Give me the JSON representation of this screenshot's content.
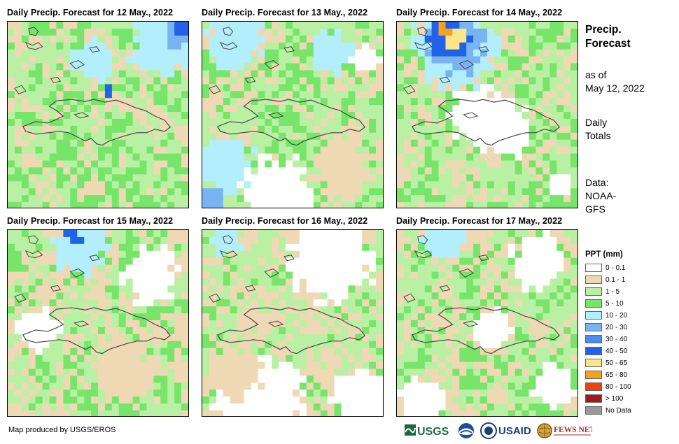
{
  "panels": [
    {
      "title": "Daily Precip. Forecast for 12 May., 2022"
    },
    {
      "title": "Daily Precip. Forecast for 13 May., 2022"
    },
    {
      "title": "Daily Precip. Forecast for 14 May., 2022"
    },
    {
      "title": "Daily Precip. Forecast for 15 May., 2022"
    },
    {
      "title": "Daily Precip. Forecast for 16 May., 2022"
    },
    {
      "title": "Daily Precip. Forecast for 17 May., 2022"
    }
  ],
  "side": {
    "title_line1": "Precip.",
    "title_line2": "Forecast",
    "asof_line1": "as of",
    "asof_line2": "May 12, 2022",
    "totals_line1": "Daily",
    "totals_line2": "Totals",
    "data_line1": "Data:",
    "data_line2": "NOAA-",
    "data_line3": "GFS"
  },
  "legend": {
    "title": "PPT (mm)",
    "items": [
      {
        "label": "0 - 0.1",
        "color": "#ffffff"
      },
      {
        "label": "0.1 - 1",
        "color": "#efd9b4"
      },
      {
        "label": "1 - 5",
        "color": "#b9f0a3"
      },
      {
        "label": "5 - 10",
        "color": "#77e56a"
      },
      {
        "label": "10 - 20",
        "color": "#b2eefb"
      },
      {
        "label": "20 - 30",
        "color": "#7ab3f2"
      },
      {
        "label": "30 - 40",
        "color": "#4a8cef"
      },
      {
        "label": "40 - 50",
        "color": "#2063e8"
      },
      {
        "label": "50 - 65",
        "color": "#fde68a"
      },
      {
        "label": "65 - 80",
        "color": "#f7a21b"
      },
      {
        "label": "80 - 100",
        "color": "#f23f12"
      },
      {
        "label": "> 100",
        "color": "#a11a1a"
      },
      {
        "label": "No Data",
        "color": "#999999"
      }
    ]
  },
  "footer": {
    "credit": "Map produced by USGS/EROS",
    "logo_usgs": "USGS",
    "logo_usaid": "USAID",
    "logo_fewsnet": "FEWS NET"
  }
}
